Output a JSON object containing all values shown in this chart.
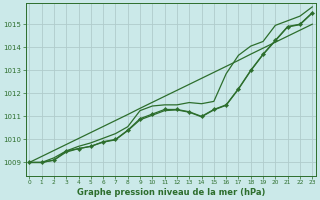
{
  "title": "Graphe pression niveau de la mer (hPa)",
  "bg_color": "#cbe9e9",
  "grid_color": "#b0cccc",
  "line_color": "#2d6e2d",
  "x_labels": [
    "0",
    "1",
    "2",
    "3",
    "4",
    "5",
    "6",
    "7",
    "8",
    "9",
    "10",
    "11",
    "12",
    "13",
    "14",
    "15",
    "16",
    "17",
    "18",
    "19",
    "20",
    "21",
    "22",
    "23"
  ],
  "y_ticks": [
    1009,
    1010,
    1011,
    1012,
    1013,
    1014,
    1015
  ],
  "ylim": [
    1008.4,
    1015.9
  ],
  "xlim": [
    -0.3,
    23.3
  ],
  "series_actual": [
    1009.0,
    1009.0,
    1009.1,
    1009.5,
    1009.6,
    1009.7,
    1009.9,
    1010.0,
    1010.4,
    1010.9,
    1011.1,
    1011.3,
    1011.3,
    1011.2,
    1011.0,
    1011.3,
    1011.5,
    1012.2,
    1013.0,
    1013.7,
    1014.3,
    1014.9,
    1015.0,
    1015.5
  ],
  "series_straight": [
    1009.0,
    1009.26,
    1009.52,
    1009.78,
    1010.04,
    1010.3,
    1010.56,
    1010.82,
    1011.08,
    1011.35,
    1011.61,
    1011.87,
    1012.13,
    1012.39,
    1012.65,
    1012.91,
    1013.17,
    1013.43,
    1013.7,
    1013.96,
    1014.22,
    1014.48,
    1014.74,
    1015.0
  ],
  "series_upper": [
    1009.0,
    1009.0,
    1009.2,
    1009.5,
    1009.7,
    1009.85,
    1010.05,
    1010.25,
    1010.55,
    1011.25,
    1011.45,
    1011.5,
    1011.5,
    1011.6,
    1011.55,
    1011.65,
    1012.85,
    1013.65,
    1014.05,
    1014.25,
    1014.95,
    1015.15,
    1015.35,
    1015.75
  ],
  "series_lower": [
    1009.0,
    1009.0,
    1009.1,
    1009.45,
    1009.6,
    1009.7,
    1009.88,
    1009.98,
    1010.38,
    1010.85,
    1011.05,
    1011.25,
    1011.28,
    1011.18,
    1010.98,
    1011.28,
    1011.48,
    1012.18,
    1012.98,
    1013.68,
    1014.28,
    1014.88,
    1014.98,
    1015.48
  ]
}
